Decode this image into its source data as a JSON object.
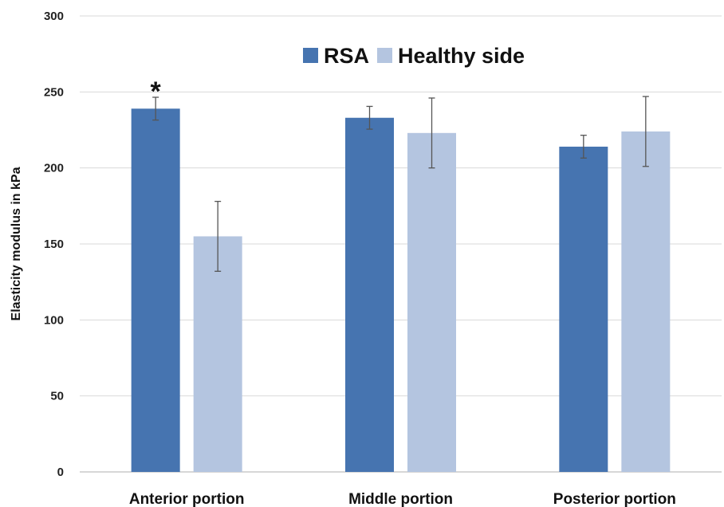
{
  "chart_data": {
    "type": "bar",
    "title": "",
    "xlabel": "",
    "ylabel": "Elasticity modulus in kPa",
    "ylim": [
      0,
      300
    ],
    "yticks": [
      0,
      50,
      100,
      150,
      200,
      250,
      300
    ],
    "grid": true,
    "legend_position": "top-right",
    "categories": [
      "Anterior portion",
      "Middle portion",
      "Posterior portion"
    ],
    "series": [
      {
        "name": "RSA",
        "color": "#4674B0",
        "values": [
          239,
          233,
          214
        ],
        "errors": [
          7.5,
          7.5,
          7.5
        ]
      },
      {
        "name": "Healthy side",
        "color": "#B4C5E0",
        "values": [
          155,
          223,
          224
        ],
        "errors": [
          23,
          23,
          23
        ]
      }
    ],
    "annotations": [
      {
        "text": "*",
        "category": "Anterior portion",
        "series": "RSA"
      }
    ]
  }
}
